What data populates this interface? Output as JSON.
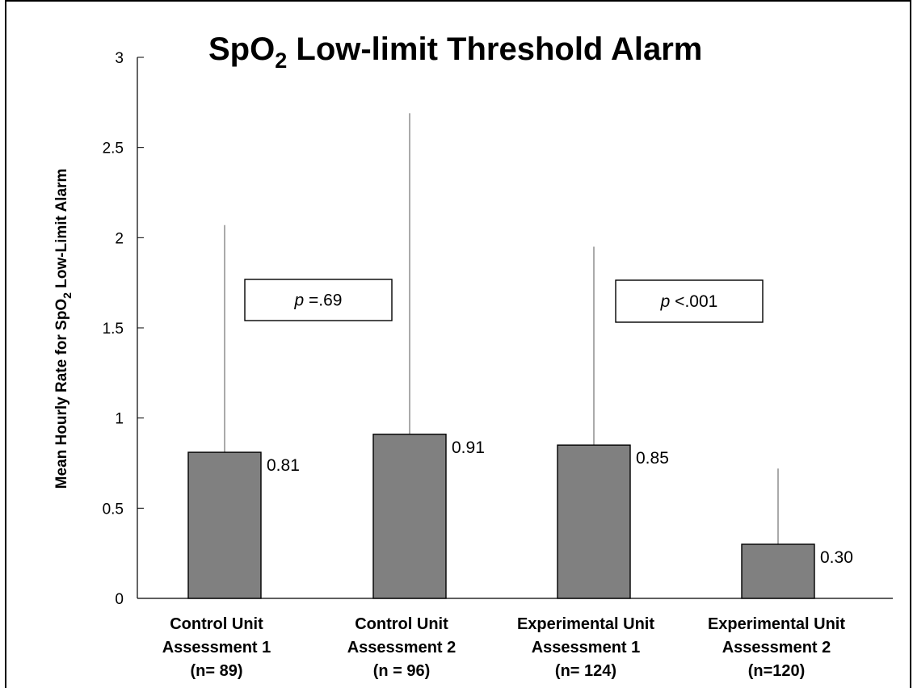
{
  "chart_data": {
    "type": "bar",
    "title_main": "SpO",
    "title_sub": "2",
    "title_rest": " Low-limit Threshold Alarm",
    "ylabel_main": "Mean Hourly Rate for SpO",
    "ylabel_sub": "2",
    "ylabel_rest": " Low-Limit Alarm",
    "ylim": [
      0,
      3
    ],
    "yticks": [
      "0",
      "0.5",
      "1",
      "1.5",
      "2",
      "2.5",
      "3"
    ],
    "categories": [
      [
        "Control Unit",
        "Assessment 1",
        "(n= 89)"
      ],
      [
        "Control Unit",
        "Assessment 2",
        "(n = 96)"
      ],
      [
        "Experimental Unit",
        "Assessment 1",
        "(n= 124)"
      ],
      [
        "Experimental Unit",
        "Assessment 2",
        "(n=120)"
      ]
    ],
    "values": [
      0.81,
      0.91,
      0.85,
      0.3
    ],
    "value_labels": [
      "0.81",
      "0.91",
      "0.85",
      "0.30"
    ],
    "error_upper": [
      2.07,
      2.69,
      1.95,
      0.72
    ],
    "annotations": [
      {
        "text_italic": "p",
        "text_rest": " =.69"
      },
      {
        "text_italic": "p",
        "text_rest": " <.001"
      }
    ],
    "bar_color": "#808080",
    "grid": false
  }
}
